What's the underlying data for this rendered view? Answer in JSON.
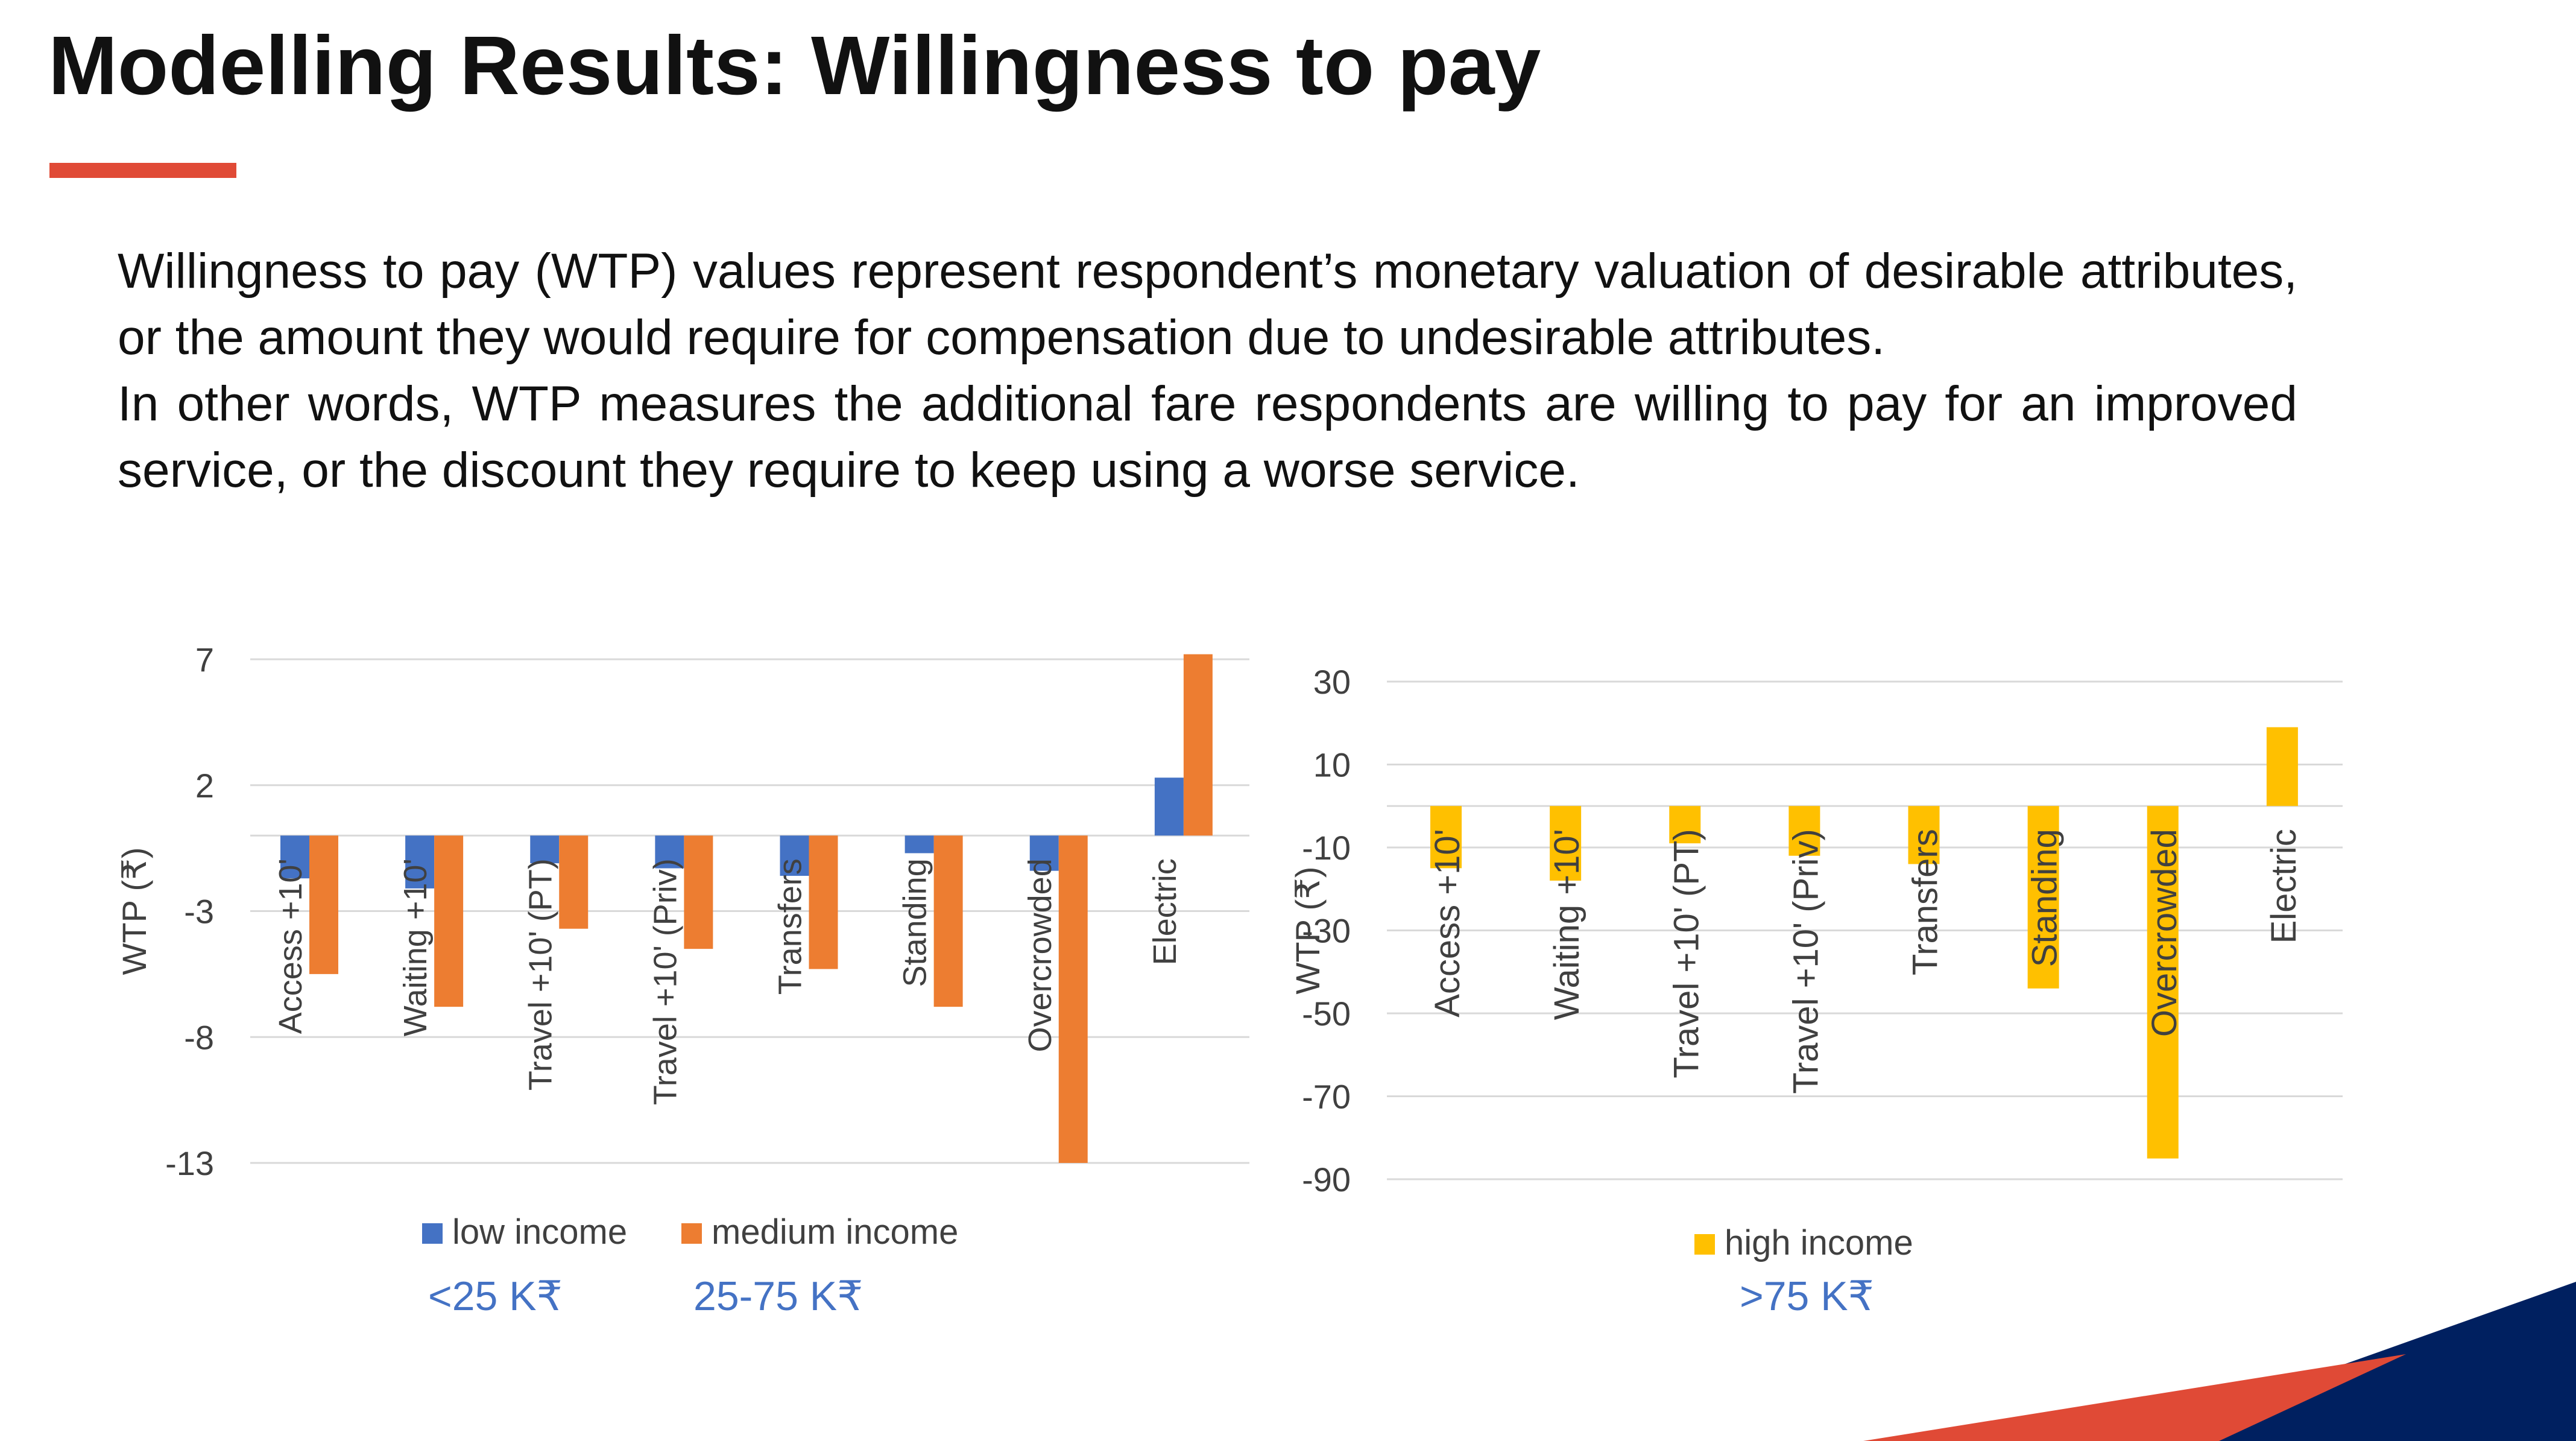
{
  "slide": {
    "title": "Modelling Results: Willingness to pay",
    "paragraph1": "Willingness to pay (WTP) values represent respondent’s monetary valuation of desirable attributes, or the amount they would require for compensation due to undesirable attributes.",
    "paragraph2": "In other words, WTP measures the additional fare respondents are willing to pay for an improved service, or the discount they require to keep using a worse service.",
    "income_labels": [
      "<25 K₹",
      "25-75 K₹",
      ">75 K₹"
    ]
  },
  "colors": {
    "low_income": "#4472c4",
    "medium_income": "#ed7d31",
    "high_income": "#ffc000",
    "accent_red": "#e04a36",
    "navy": "#002060"
  },
  "chart_data": [
    {
      "type": "bar",
      "categories": [
        "Access +10'",
        "Waiting +10'",
        "Travel +10' (PT)",
        "Travel +10' (Priv)",
        "Transfers",
        "Standing",
        "Overcrowded",
        "Electric"
      ],
      "series": [
        {
          "name": "low income",
          "values": [
            -1.7,
            -2.1,
            -1.1,
            -1.3,
            -1.6,
            -0.7,
            -1.4,
            2.3
          ]
        },
        {
          "name": "medium income",
          "values": [
            -5.5,
            -6.8,
            -3.7,
            -4.5,
            -5.3,
            -6.8,
            -13.0,
            7.2
          ]
        }
      ],
      "yticks": [
        7,
        2,
        -3,
        -8,
        -13
      ],
      "ylim": [
        -13,
        7
      ],
      "ylabel": "WTP (₹)",
      "xlabel": "",
      "grid": true,
      "legend": "bottom"
    },
    {
      "type": "bar",
      "categories": [
        "Access +10'",
        "Waiting +10'",
        "Travel +10' (PT)",
        "Travel +10' (Priv)",
        "Transfers",
        "Standing",
        "Overcrowded",
        "Electric"
      ],
      "series": [
        {
          "name": "high income",
          "values": [
            -15,
            -18,
            -9,
            -12,
            -14,
            -44,
            -85,
            19
          ]
        }
      ],
      "yticks": [
        30,
        10,
        -10,
        -30,
        -50,
        -70,
        -90
      ],
      "ylim": [
        -90,
        30
      ],
      "ylabel": "WTP (₹)",
      "xlabel": "",
      "grid": true,
      "legend": "bottom"
    }
  ]
}
